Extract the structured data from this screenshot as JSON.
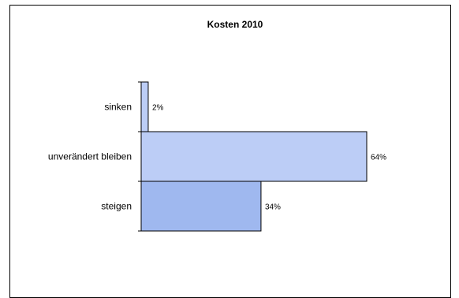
{
  "chart_data": {
    "type": "bar",
    "orientation": "horizontal",
    "title": "Kosten 2010",
    "categories": [
      "sinken",
      "unverändert bleiben",
      "steigen"
    ],
    "values": [
      2,
      64,
      34
    ],
    "value_labels": [
      "2%",
      "64%",
      "34%"
    ],
    "colors": [
      "#bccdf6",
      "#bccdf6",
      "#9fb8ef"
    ],
    "xlabel": "",
    "ylabel": "",
    "xlim": [
      0,
      64
    ],
    "grid": false,
    "legend": "none"
  }
}
